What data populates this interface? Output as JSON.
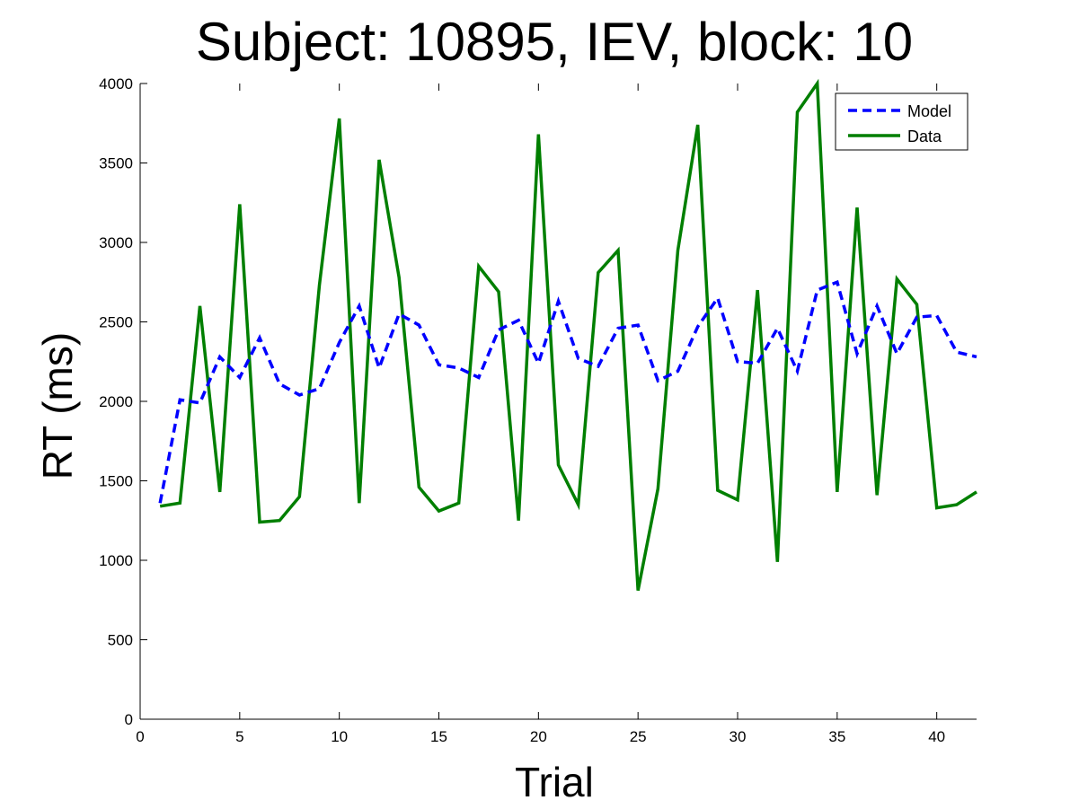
{
  "chart_data": {
    "type": "line",
    "title": "Subject: 10895, IEV, block: 10",
    "xlabel": "Trial",
    "ylabel": "RT (ms)",
    "xlim": [
      0,
      42
    ],
    "ylim": [
      0,
      4000
    ],
    "xticks": [
      "0",
      "5",
      "10",
      "15",
      "20",
      "25",
      "30",
      "35",
      "40"
    ],
    "yticks": [
      "0",
      "500",
      "1000",
      "1500",
      "2000",
      "2500",
      "3000",
      "3500",
      "4000"
    ],
    "grid": false,
    "legend": "top-right",
    "x": [
      1,
      2,
      3,
      4,
      5,
      6,
      7,
      8,
      9,
      10,
      11,
      12,
      13,
      14,
      15,
      16,
      17,
      18,
      19,
      20,
      21,
      22,
      23,
      24,
      25,
      26,
      27,
      28,
      29,
      30,
      31,
      32,
      33,
      34,
      35,
      36,
      37,
      38,
      39,
      40,
      41,
      42
    ],
    "series": [
      {
        "name": "Model",
        "color": "#0000ff",
        "style": "dashed",
        "values": [
          1360,
          2010,
          1990,
          2280,
          2150,
          2400,
          2110,
          2040,
          2080,
          2370,
          2600,
          2210,
          2550,
          2480,
          2230,
          2210,
          2150,
          2450,
          2510,
          2240,
          2630,
          2270,
          2220,
          2460,
          2480,
          2130,
          2190,
          2470,
          2650,
          2250,
          2240,
          2460,
          2190,
          2700,
          2750,
          2300,
          2600,
          2300,
          2530,
          2540,
          2310,
          2280
        ]
      },
      {
        "name": "Data",
        "color": "#007f00",
        "style": "solid",
        "values": [
          1340,
          1360,
          2600,
          1430,
          3240,
          1240,
          1250,
          1400,
          2730,
          3780,
          1360,
          3520,
          2780,
          1460,
          1310,
          1360,
          2850,
          2690,
          1250,
          3680,
          1600,
          1350,
          2810,
          2950,
          810,
          1450,
          2950,
          3740,
          1440,
          1380,
          2700,
          990,
          3820,
          4000,
          1430,
          3220,
          1410,
          2770,
          2610,
          1330,
          1350,
          1430
        ]
      }
    ]
  }
}
